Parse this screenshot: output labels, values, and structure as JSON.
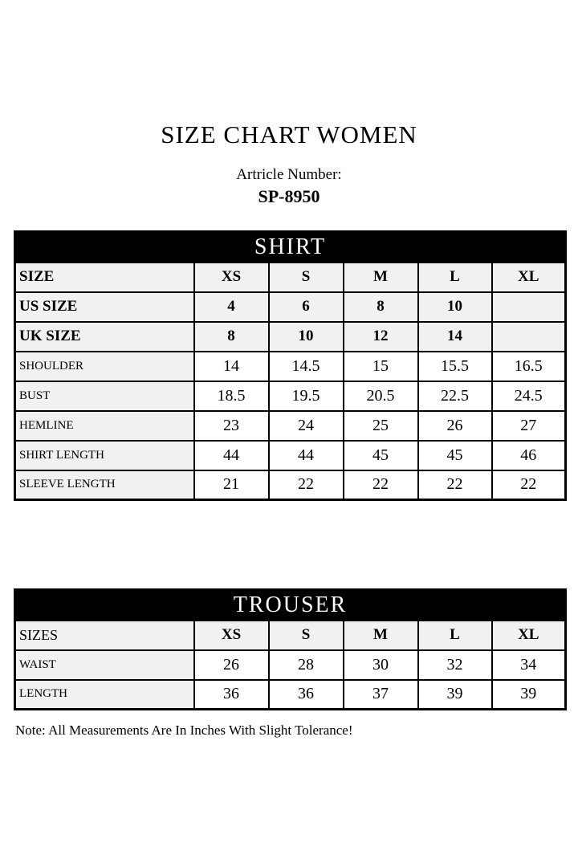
{
  "header": {
    "title": "SIZE CHART WOMEN",
    "article_label": "Artricle Number:",
    "article_number": "SP-8950"
  },
  "shirt": {
    "title": "SHIRT",
    "size_rows": [
      {
        "label": "SIZE",
        "values": [
          "XS",
          "S",
          "M",
          "L",
          "XL"
        ]
      },
      {
        "label": "US SIZE",
        "values": [
          "4",
          "6",
          "8",
          "10",
          ""
        ]
      },
      {
        "label": "UK SIZE",
        "values": [
          "8",
          "10",
          "12",
          "14",
          ""
        ]
      }
    ],
    "measure_rows": [
      {
        "label": "SHOULDER",
        "values": [
          "14",
          "14.5",
          "15",
          "15.5",
          "16.5"
        ]
      },
      {
        "label": "BUST",
        "values": [
          "18.5",
          "19.5",
          "20.5",
          "22.5",
          "24.5"
        ]
      },
      {
        "label": "HEMLINE",
        "values": [
          "23",
          "24",
          "25",
          "26",
          "27"
        ]
      },
      {
        "label": "SHIRT LENGTH",
        "values": [
          "44",
          "44",
          "45",
          "45",
          "46"
        ]
      },
      {
        "label": "SLEEVE LENGTH",
        "values": [
          "21",
          "22",
          "22",
          "22",
          "22"
        ]
      }
    ]
  },
  "trouser": {
    "title": "TROUSER",
    "size_rows": [
      {
        "label": "SIZES",
        "values": [
          "XS",
          "S",
          "M",
          "L",
          "XL"
        ]
      }
    ],
    "measure_rows": [
      {
        "label": "WAIST",
        "values": [
          "26",
          "28",
          "30",
          "32",
          "34"
        ]
      },
      {
        "label": "LENGTH",
        "values": [
          "36",
          "36",
          "37",
          "39",
          "39"
        ]
      }
    ]
  },
  "note": "Note: All Measurements Are In Inches With Slight Tolerance!",
  "colors": {
    "band_bg": "#000000",
    "band_text": "#ffffff",
    "shaded_cell_bg": "#f1f1f1",
    "cell_bg": "#ffffff",
    "border": "#000000",
    "page_bg": "#ffffff",
    "text": "#000000"
  }
}
